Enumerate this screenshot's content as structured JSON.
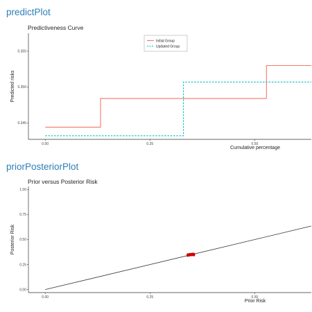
{
  "sections": [
    {
      "title": "predictPlot"
    },
    {
      "title": "priorPosteriorPlot"
    }
  ],
  "colors": {
    "initial": "#f8766d",
    "updated": "#00bfc4",
    "line": "#333333",
    "points": "#cc0000",
    "axis": "#333333",
    "section_title": "#2d7fb8"
  },
  "chart_data": [
    {
      "type": "line",
      "title": "Predictiveness Curve",
      "xlabel": "Cumulative percentage",
      "ylabel": "Predicted risks",
      "xlim": [
        -0.04,
        0.635
      ],
      "ylim": [
        0.3427,
        0.3575
      ],
      "x_ticks": [
        0.0,
        0.25,
        0.5
      ],
      "x_tick_labels": [
        "0.00",
        "0.25",
        "0.50"
      ],
      "y_ticks": [
        0.345,
        0.35,
        0.355
      ],
      "y_tick_labels": [
        "0.345",
        "0.350",
        "0.355"
      ],
      "grid": false,
      "legend_position": "top-center",
      "series": [
        {
          "name": "Initial Group",
          "style": "solid",
          "step": true,
          "x": [
            0.0,
            0.132,
            0.132,
            0.528,
            0.528,
            0.635
          ],
          "y": [
            0.3444,
            0.3444,
            0.3484,
            0.3484,
            0.353,
            0.353
          ]
        },
        {
          "name": "Updated Group",
          "style": "dashed",
          "step": true,
          "x": [
            0.0,
            0.33,
            0.33,
            0.635
          ],
          "y": [
            0.3432,
            0.3432,
            0.3507,
            0.3507
          ]
        }
      ]
    },
    {
      "type": "scatter",
      "title": "Prior versus Posterior Risk",
      "xlabel": "Prior Risk",
      "ylabel": "Posterior Risk",
      "xlim": [
        -0.04,
        0.635
      ],
      "ylim": [
        -0.03,
        1.03
      ],
      "x_ticks": [
        0.0,
        0.25,
        0.5
      ],
      "x_tick_labels": [
        "0.00",
        "0.25",
        "0.50"
      ],
      "y_ticks": [
        0.0,
        0.25,
        0.5,
        0.75,
        1.0
      ],
      "y_tick_labels": [
        "0.00",
        "0.25",
        "0.50",
        "0.75",
        "1.00"
      ],
      "grid": false,
      "reference_line": {
        "x": [
          0.0,
          0.635
        ],
        "y": [
          0.0,
          0.635
        ]
      },
      "points": [
        {
          "x": 0.34,
          "y": 0.345
        },
        {
          "x": 0.344,
          "y": 0.348
        },
        {
          "x": 0.348,
          "y": 0.35
        },
        {
          "x": 0.352,
          "y": 0.352
        },
        {
          "x": 0.355,
          "y": 0.35
        }
      ]
    }
  ]
}
